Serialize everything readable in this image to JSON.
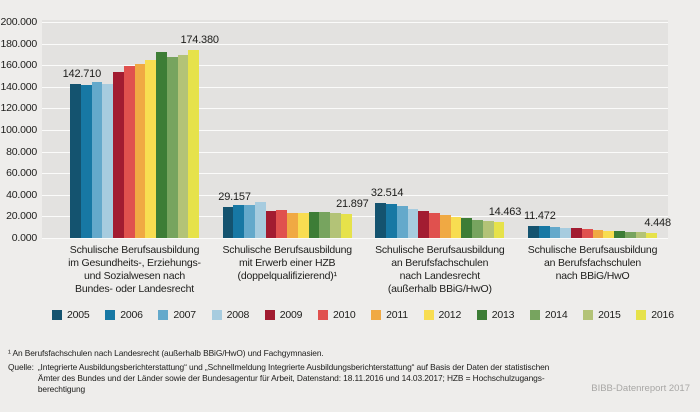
{
  "chart_data": {
    "type": "bar",
    "title": "",
    "ylim": [
      0,
      200000
    ],
    "ytick_step": 20000,
    "ytick_labels": [
      "200.000",
      "180.000",
      "160.000",
      "140.000",
      "120.000",
      "100.000",
      "80.000",
      "60.000",
      "40.000",
      "20.000",
      "0.000"
    ],
    "grid": true,
    "legend_position": "bottom",
    "legend": [
      {
        "label": "2005",
        "color": "#14536f"
      },
      {
        "label": "2006",
        "color": "#1778a4"
      },
      {
        "label": "2007",
        "color": "#64a9cb"
      },
      {
        "label": "2008",
        "color": "#a7ccdf"
      },
      {
        "label": "2009",
        "color": "#a21c31"
      },
      {
        "label": "2010",
        "color": "#e0514e"
      },
      {
        "label": "2011",
        "color": "#f0a943"
      },
      {
        "label": "2012",
        "color": "#f8dd51"
      },
      {
        "label": "2013",
        "color": "#3d7d36"
      },
      {
        "label": "2014",
        "color": "#77a45f"
      },
      {
        "label": "2015",
        "color": "#b3c377"
      },
      {
        "label": "2016",
        "color": "#e6e24a"
      }
    ],
    "groups": [
      {
        "label_lines": [
          "Schulische Berufsausbildung",
          "im Gesundheits-, Erziehungs-",
          "und Sozialwesen nach",
          "Bundes- oder Landesrecht"
        ],
        "values": [
          142710,
          141300,
          144900,
          142900,
          153800,
          158900,
          161200,
          164900,
          172600,
          167800,
          169400,
          174380
        ],
        "annotations": [
          {
            "index": 0,
            "text": "142.710"
          },
          {
            "index": 11,
            "text": "174.380"
          }
        ]
      },
      {
        "label_lines": [
          "Schulische Berufsausbildung",
          "mit Erwerb einer HZB",
          "(doppelqualifizierend)¹"
        ],
        "values": [
          29157,
          30400,
          30900,
          32900,
          24600,
          25700,
          23400,
          23300,
          24300,
          24200,
          22700,
          21897
        ],
        "annotations": [
          {
            "index": 0,
            "text": "29.157"
          },
          {
            "index": 11,
            "text": "21.897"
          }
        ]
      },
      {
        "label_lines": [
          "Schulische Berufsausbildung",
          "an Berufsfachschulen",
          "nach Landesrecht",
          "(außerhalb BBiG/HwO)"
        ],
        "values": [
          32514,
          31200,
          29600,
          27300,
          25200,
          22900,
          21100,
          19300,
          18300,
          16500,
          15400,
          14463
        ],
        "annotations": [
          {
            "index": 0,
            "text": "32.514"
          },
          {
            "index": 11,
            "text": "14.463"
          }
        ]
      },
      {
        "label_lines": [
          "Schulische Berufsausbildung",
          "an Berufsfachschulen",
          "nach BBiG/HwO"
        ],
        "values": [
          11472,
          10900,
          10300,
          9600,
          8800,
          8100,
          7500,
          6900,
          6100,
          5600,
          5100,
          4448
        ],
        "annotations": [
          {
            "index": 0,
            "text": "11.472"
          },
          {
            "index": 11,
            "text": "4.448"
          }
        ]
      }
    ]
  },
  "footnote": "¹ An Berufsfachschulen nach Landesrecht (außerhalb BBiG/HwO) und Fachgymnasien.",
  "source": {
    "label": "Quelle:",
    "lines": [
      "„Integrierte Ausbildungsberichterstattung“ und „Schnellmeldung Integrierte Ausbildungsberichterstattung“ auf Basis der Daten der statistischen",
      "Ämter des Bundes und der Länder sowie der Bundesagentur für Arbeit, Datenstand: 18.11.2016 und 14.03.2017; HZB = Hochschulzugangs-",
      "berechtigung"
    ]
  },
  "credit": "BIBB-Datenreport 2017"
}
